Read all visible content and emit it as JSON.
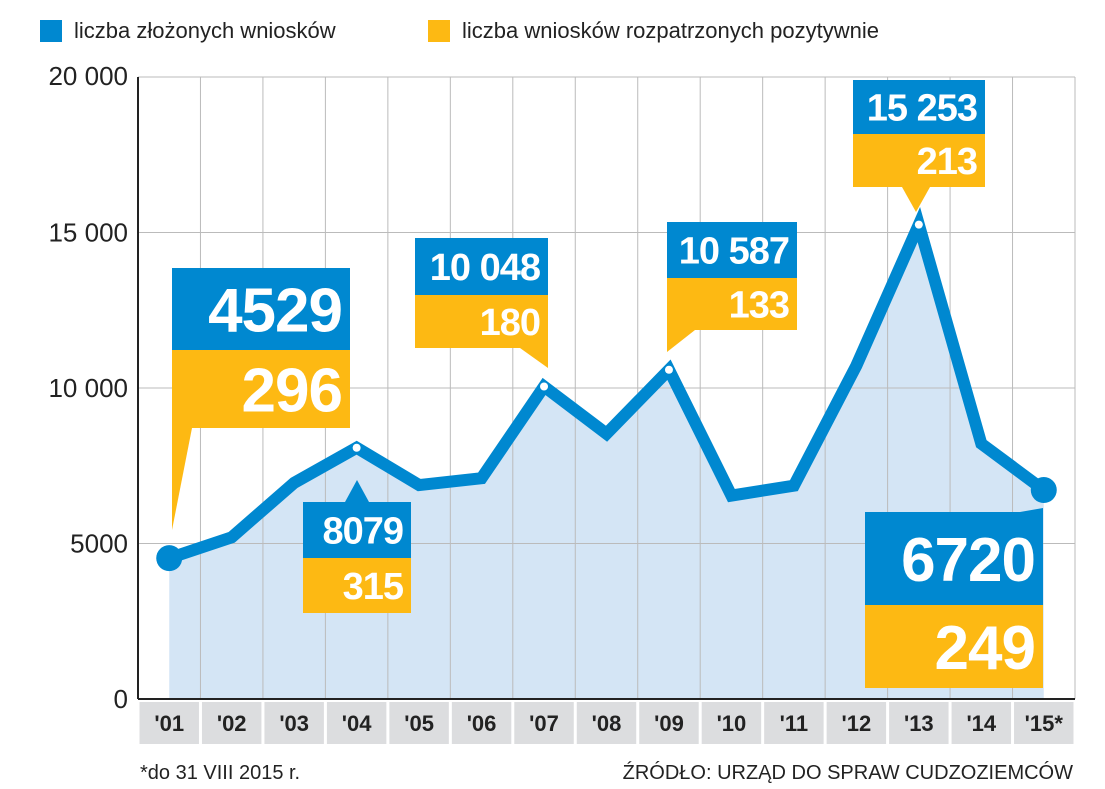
{
  "colors": {
    "applications": "#0088d0",
    "positive": "#fdb913",
    "fill": "#d4e5f5",
    "grid": "#bbbbbb",
    "xband": "#dcdddf"
  },
  "chart_data": {
    "type": "line",
    "title": "",
    "legend": [
      {
        "name": "liczba złożonych wniosków",
        "color": "#0088d0"
      },
      {
        "name": "liczba wniosków rozpatrzonych pozytywnie",
        "color": "#fdb913"
      }
    ],
    "legend_placement": "top",
    "categories": [
      "'01",
      "'02",
      "'03",
      "'04",
      "'05",
      "'06",
      "'07",
      "'08",
      "'09",
      "'10",
      "'11",
      "'12",
      "'13",
      "'14",
      "'15*"
    ],
    "series": [
      {
        "name": "liczba złożonych wniosków",
        "values": [
          4529,
          5200,
          6950,
          8079,
          6880,
          7100,
          10048,
          8530,
          10587,
          6540,
          6860,
          10720,
          15253,
          8210,
          6720
        ]
      }
    ],
    "ylim": [
      0,
      20000
    ],
    "yticks": [
      {
        "v": 0,
        "label": "0"
      },
      {
        "v": 5000,
        "label": "5000"
      },
      {
        "v": 10000,
        "label": "10 000"
      },
      {
        "v": 15000,
        "label": "15 000"
      },
      {
        "v": 20000,
        "label": "20 000"
      }
    ],
    "grid": true,
    "callouts": [
      {
        "idx": 0,
        "applications": "4529",
        "positive": "296"
      },
      {
        "idx": 3,
        "applications": "8079",
        "positive": "315"
      },
      {
        "idx": 6,
        "applications": "10 048",
        "positive": "180"
      },
      {
        "idx": 8,
        "applications": "10 587",
        "positive": "133"
      },
      {
        "idx": 12,
        "applications": "15 253",
        "positive": "213"
      },
      {
        "idx": 14,
        "applications": "6720",
        "positive": "249"
      }
    ]
  },
  "footnote": "*do 31 VIII 2015 r.",
  "source": "ŹRÓDŁO: URZĄD DO SPRAW CUDZOZIEMCÓW"
}
